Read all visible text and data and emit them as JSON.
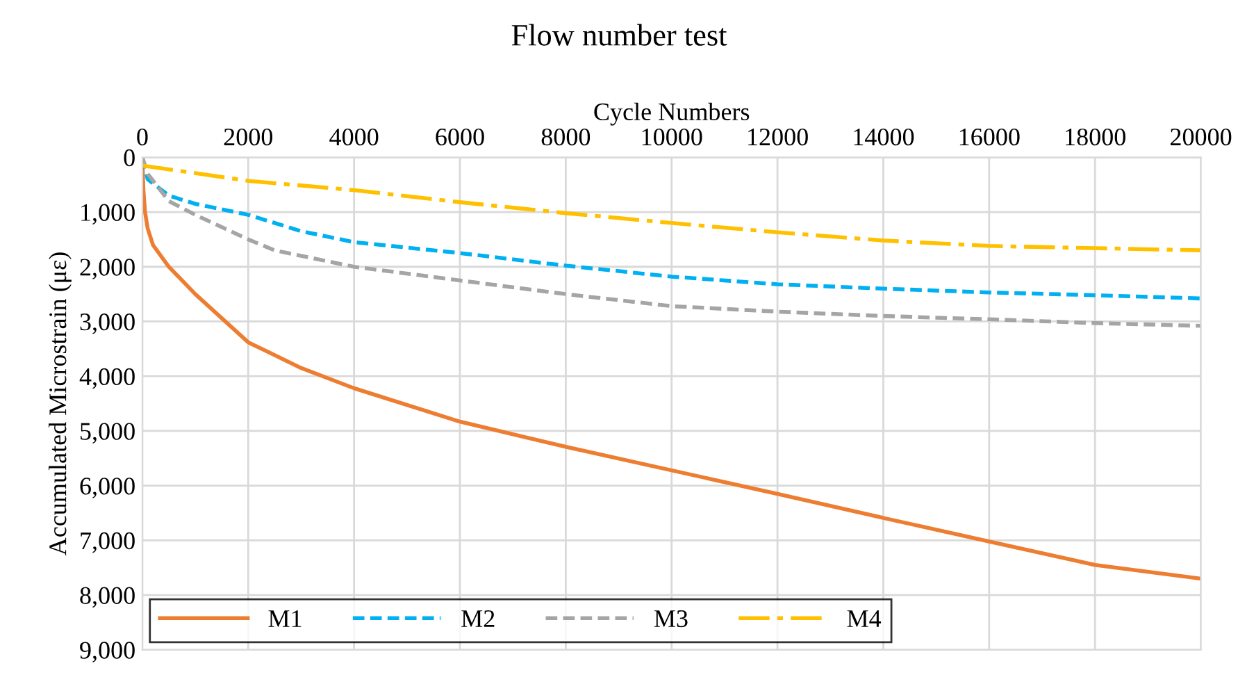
{
  "chart_data": {
    "type": "line",
    "title": "Flow number test",
    "xlabel": "Cycle Numbers",
    "ylabel": "Accumulated Microstrain (με)",
    "xlim": [
      0,
      20000
    ],
    "xticks": [
      0,
      2000,
      4000,
      6000,
      8000,
      10000,
      12000,
      14000,
      16000,
      18000,
      20000
    ],
    "ylim": [
      9000,
      0
    ],
    "yticks": [
      {
        "value": 0,
        "label": "0"
      },
      {
        "value": 1000,
        "label": "1,000"
      },
      {
        "value": 2000,
        "label": "2,000"
      },
      {
        "value": 3000,
        "label": "3,000"
      },
      {
        "value": 4000,
        "label": "4,000"
      },
      {
        "value": 5000,
        "label": "5,000"
      },
      {
        "value": 6000,
        "label": "6,000"
      },
      {
        "value": 7000,
        "label": "7,000"
      },
      {
        "value": 8000,
        "label": "8,000"
      },
      {
        "value": 9000,
        "label": "9,000"
      }
    ],
    "grid": true,
    "legend": "bottom left",
    "marker": "none",
    "series": [
      {
        "name": "M1",
        "color": "#ed7d31",
        "line_style": "solid",
        "x": [
          0,
          20,
          50,
          100,
          200,
          500,
          1000,
          2000,
          3000,
          4000,
          6000,
          8000,
          10000,
          12000,
          14000,
          16000,
          18000,
          20000
        ],
        "values": [
          0,
          600,
          1000,
          1300,
          1600,
          2000,
          2500,
          3380,
          3850,
          4220,
          4830,
          5290,
          5720,
          6150,
          6590,
          7020,
          7450,
          7700
        ]
      },
      {
        "name": "M2",
        "color": "#00b0f0",
        "line_style": "dashed",
        "x": [
          0,
          100,
          500,
          1000,
          2000,
          3000,
          4000,
          6000,
          8000,
          10000,
          12000,
          14000,
          16000,
          18000,
          20000
        ],
        "values": [
          0,
          400,
          700,
          850,
          1050,
          1350,
          1550,
          1750,
          1980,
          2180,
          2320,
          2400,
          2470,
          2520,
          2580
        ]
      },
      {
        "name": "M3",
        "color": "#a5a5a5",
        "line_style": "dashed",
        "x": [
          0,
          100,
          500,
          1000,
          2000,
          2500,
          4000,
          6000,
          8000,
          10000,
          12000,
          14000,
          16000,
          18000,
          20000
        ],
        "values": [
          0,
          300,
          800,
          1050,
          1500,
          1700,
          2000,
          2250,
          2500,
          2720,
          2820,
          2900,
          2960,
          3030,
          3080
        ]
      },
      {
        "name": "M4",
        "color": "#ffc000",
        "line_style": "dashdot",
        "x": [
          0,
          2000,
          4000,
          6000,
          8000,
          10000,
          12000,
          14000,
          16000,
          18000,
          20000
        ],
        "values": [
          150,
          430,
          600,
          820,
          1020,
          1200,
          1370,
          1520,
          1620,
          1660,
          1700
        ]
      }
    ]
  }
}
